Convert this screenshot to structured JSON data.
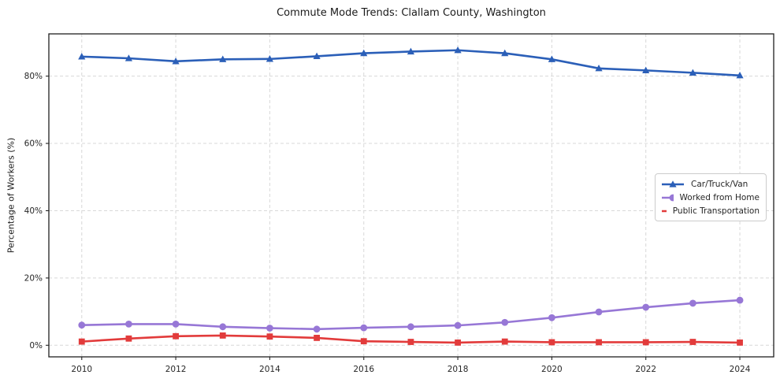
{
  "title": "Commute Mode Trends: Clallam County, Washington",
  "chart_data": {
    "type": "line",
    "title": "Commute Mode Trends: Clallam County, Washington",
    "xlabel": "",
    "ylabel": "Percentage of Workers (%)",
    "x": [
      2010,
      2011,
      2012,
      2013,
      2014,
      2015,
      2016,
      2017,
      2018,
      2019,
      2020,
      2021,
      2022,
      2023,
      2024
    ],
    "series": [
      {
        "name": "Car/Truck/Van",
        "color": "#2b5fb8",
        "marker": "triangle",
        "values": [
          85.8,
          85.3,
          84.4,
          85.0,
          85.1,
          85.9,
          86.8,
          87.3,
          87.7,
          86.8,
          85.0,
          82.3,
          81.7,
          81.0,
          80.2
        ]
      },
      {
        "name": "Worked from Home",
        "color": "#9777d6",
        "marker": "circle",
        "values": [
          6.0,
          6.3,
          6.3,
          5.5,
          5.1,
          4.8,
          5.2,
          5.5,
          5.9,
          6.8,
          8.2,
          9.9,
          11.3,
          12.5,
          13.4
        ]
      },
      {
        "name": "Public Transportation",
        "color": "#e23b3b",
        "marker": "square",
        "values": [
          1.1,
          2.0,
          2.7,
          2.9,
          2.6,
          2.2,
          1.2,
          1.0,
          0.8,
          1.1,
          0.9,
          0.9,
          0.9,
          1.0,
          0.8
        ]
      }
    ],
    "x_ticks": [
      2010,
      2012,
      2014,
      2016,
      2018,
      2020,
      2022,
      2024
    ],
    "y_ticks": [
      0,
      20,
      40,
      60,
      80
    ],
    "y_tick_labels": [
      "0%",
      "20%",
      "40%",
      "60%",
      "80%"
    ],
    "xlim": [
      2009.3,
      2024.72
    ],
    "ylim": [
      -3.44,
      92.56
    ],
    "grid": true,
    "grid_style": "dashed",
    "legend_position": "center-right"
  },
  "colors": {
    "grid": "#d8d8d8",
    "spine": "#1f1f1f",
    "tick_text": "#262626",
    "background": "#ffffff"
  }
}
